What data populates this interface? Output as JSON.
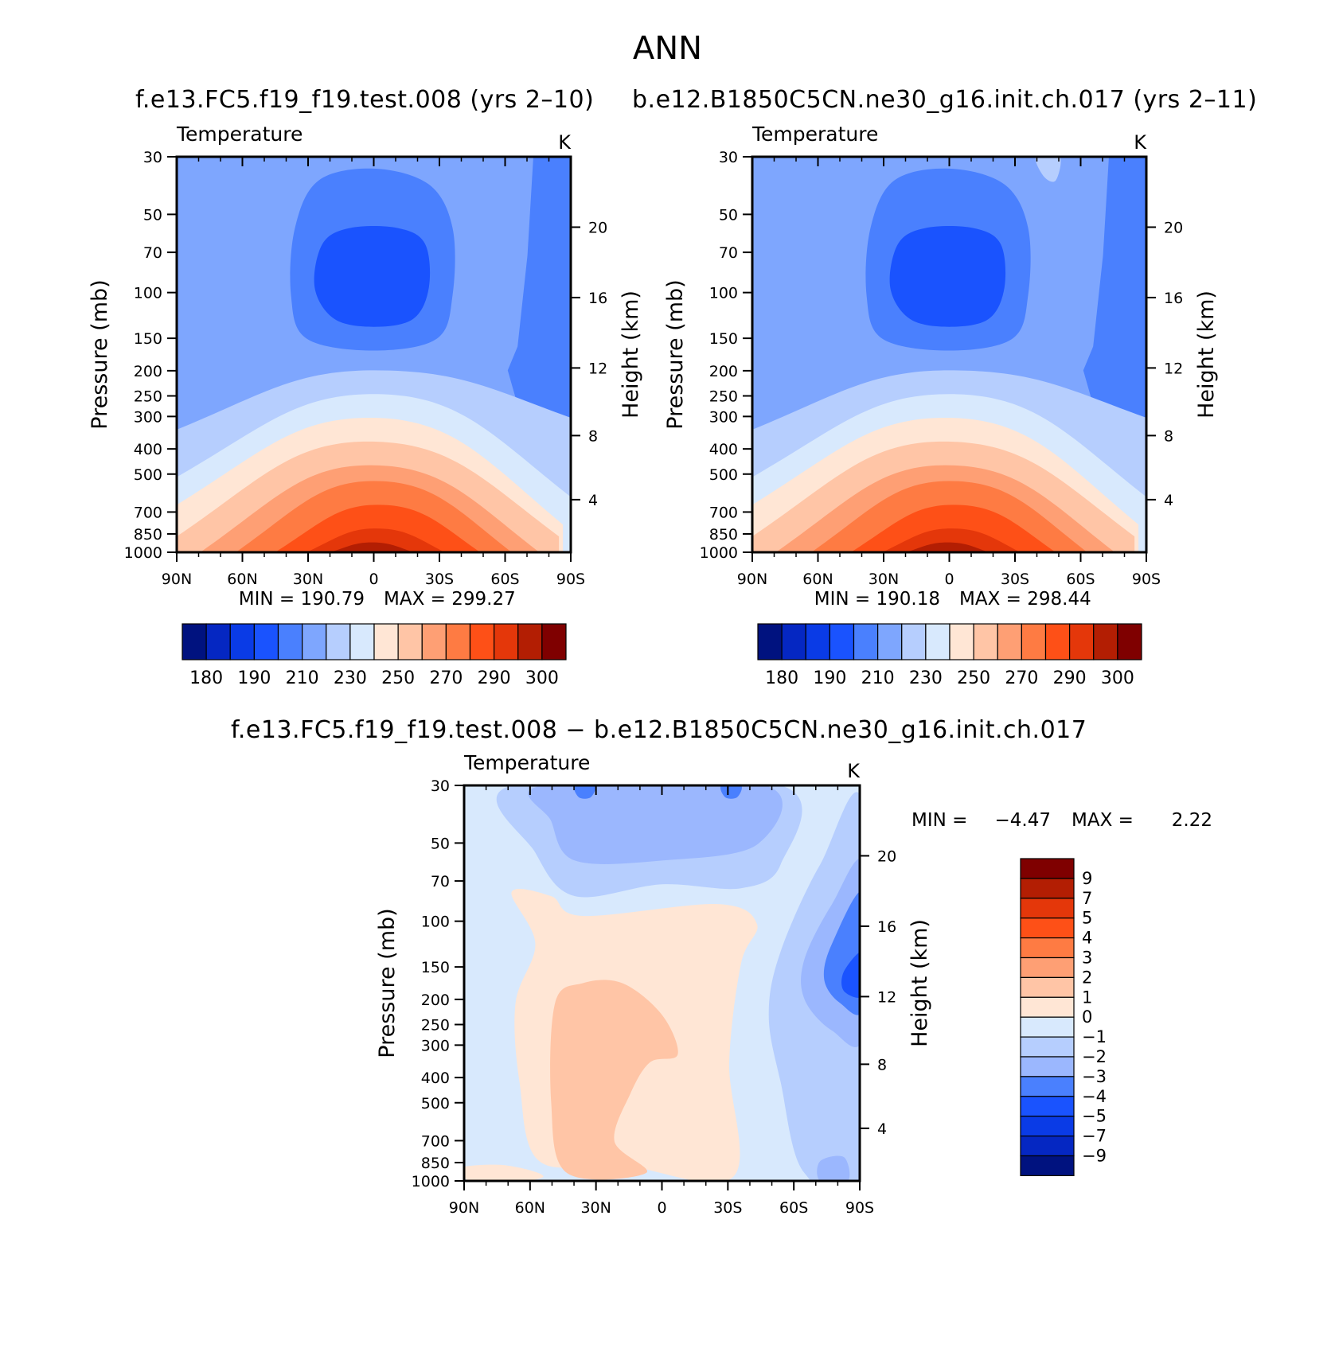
{
  "page": {
    "title": "ANN",
    "top_subtitle_left": "f.e13.FC5.f19_f19.test.008 (yrs 2–10)",
    "top_subtitle_right": "b.e12.B1850C5CN.ne30_g16.init.ch.017 (yrs 2–11)",
    "diff_subtitle": "f.e13.FC5.f19_f19.test.008 − b.e12.B1850C5CN.ne30_g16.init.ch.017"
  },
  "chart_data": [
    {
      "id": "test",
      "type": "heatmap",
      "title": "Temperature",
      "units": "K",
      "xlabel": "",
      "ylabel": "Pressure (mb)",
      "ylabel_right": "Height (km)",
      "x_ticks": [
        "90N",
        "60N",
        "30N",
        "0",
        "30S",
        "60S",
        "90S"
      ],
      "y_ticks": [
        30,
        50,
        70,
        100,
        150,
        200,
        250,
        300,
        400,
        500,
        700,
        850,
        1000
      ],
      "y_right_ticks": [
        4,
        8,
        12,
        16,
        20
      ],
      "min_label": "MIN = 190.79",
      "max_label": "MAX = 299.27",
      "min": 190.79,
      "max": 299.27,
      "colorbar_labels": [
        "180",
        "190",
        "210",
        "230",
        "250",
        "270",
        "290",
        "300"
      ],
      "colorbar_levels": [
        180,
        185,
        190,
        200,
        210,
        220,
        230,
        240,
        250,
        260,
        270,
        280,
        290,
        295,
        300
      ]
    },
    {
      "id": "control",
      "type": "heatmap",
      "title": "Temperature",
      "units": "K",
      "xlabel": "",
      "ylabel": "Pressure (mb)",
      "ylabel_right": "Height (km)",
      "x_ticks": [
        "90N",
        "60N",
        "30N",
        "0",
        "30S",
        "60S",
        "90S"
      ],
      "y_ticks": [
        30,
        50,
        70,
        100,
        150,
        200,
        250,
        300,
        400,
        500,
        700,
        850,
        1000
      ],
      "y_right_ticks": [
        4,
        8,
        12,
        16,
        20
      ],
      "min_label": "MIN = 190.18",
      "max_label": "MAX = 298.44",
      "min": 190.18,
      "max": 298.44,
      "colorbar_labels": [
        "180",
        "190",
        "210",
        "230",
        "250",
        "270",
        "290",
        "300"
      ],
      "colorbar_levels": [
        180,
        185,
        190,
        200,
        210,
        220,
        230,
        240,
        250,
        260,
        270,
        280,
        290,
        295,
        300
      ]
    },
    {
      "id": "difference",
      "type": "heatmap",
      "title": "Temperature",
      "units": "K",
      "xlabel": "",
      "ylabel": "Pressure (mb)",
      "ylabel_right": "Height (km)",
      "x_ticks": [
        "90N",
        "60N",
        "30N",
        "0",
        "30S",
        "60S",
        "90S"
      ],
      "y_ticks": [
        30,
        50,
        70,
        100,
        150,
        200,
        250,
        300,
        400,
        500,
        700,
        850,
        1000
      ],
      "y_right_ticks": [
        4,
        8,
        12,
        16,
        20
      ],
      "min_label": "MIN =",
      "max_label": "MAX =",
      "min_value": "−4.47",
      "max_value": "2.22",
      "min": -4.47,
      "max": 2.22,
      "colorbar_labels": [
        "9",
        "7",
        "5",
        "4",
        "3",
        "2",
        "1",
        "0",
        "−1",
        "−2",
        "−3",
        "−4",
        "−5",
        "−7",
        "−9"
      ]
    }
  ],
  "colors": {
    "warm": [
      "#7f0000",
      "#b31e03",
      "#e4370a",
      "#fe5017",
      "#fe7b43",
      "#fe9f74",
      "#ffc5a6",
      "#ffe6d5"
    ],
    "cool": [
      "#d8e9fd",
      "#b6cefe",
      "#9bb7fe",
      "#7ea6fe",
      "#4a80fe",
      "#1a53fe",
      "#0a3be6",
      "#0527c2",
      "#00127f"
    ],
    "temperature_bands": [
      "#00127f",
      "#0527c2",
      "#0a3be6",
      "#1a53fe",
      "#4a80fe",
      "#7ea6fe",
      "#b6cefe",
      "#d8e9fd",
      "#ffe6d5",
      "#ffc5a6",
      "#fe9f74",
      "#fe7b43",
      "#fe5017",
      "#e4370a",
      "#b31e03",
      "#7f0000"
    ],
    "difference_bands": [
      "#7f0000",
      "#b31e03",
      "#e4370a",
      "#fe5017",
      "#fe7b43",
      "#fe9f74",
      "#ffc5a6",
      "#ffe6d5",
      "#d8e9fd",
      "#b6cefe",
      "#9bb7fe",
      "#4a80fe",
      "#1a53fe",
      "#0a3be6",
      "#0527c2",
      "#00127f"
    ]
  }
}
